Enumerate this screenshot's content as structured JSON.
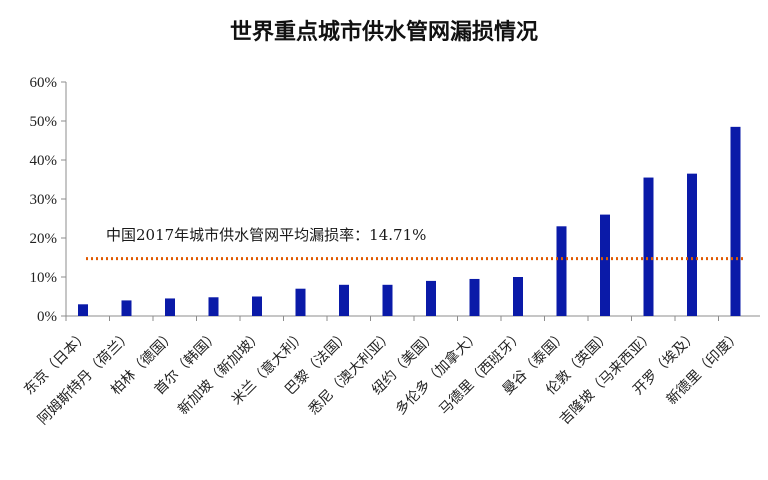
{
  "chart_data": {
    "type": "bar",
    "title": "世界重点城市供水管网漏损情况",
    "categories": [
      "东京（日本）",
      "阿姆斯特丹（荷兰）",
      "柏林（德国）",
      "首尔（韩国）",
      "新加坡（新加坡）",
      "米兰（意大利）",
      "巴黎（法国）",
      "悉尼（澳大利亚）",
      "纽约（美国）",
      "多伦多（加拿大）",
      "马德里（西班牙）",
      "曼谷（泰国）",
      "伦敦（英国）",
      "吉隆坡（马来西亚）",
      "开罗（埃及）",
      "新德里（印度）"
    ],
    "values": [
      3,
      4,
      4.5,
      4.8,
      5,
      7,
      8,
      8,
      9,
      9.5,
      10,
      23,
      26,
      35.5,
      36.5,
      48.5
    ],
    "ylim": [
      0,
      60
    ],
    "yticks": [
      "0%",
      "10%",
      "20%",
      "30%",
      "40%",
      "50%",
      "60%"
    ],
    "ytick_values": [
      0,
      10,
      20,
      30,
      40,
      50,
      60
    ],
    "reference_line": {
      "value": 14.71,
      "label": "中国2017年城市供水管网平均漏损率：14.71%"
    },
    "grid": false,
    "legend": "none",
    "colors": {
      "bar": "#0a1aa8",
      "reference_line": "#e05a00",
      "axis": "#8c8c8c"
    }
  }
}
